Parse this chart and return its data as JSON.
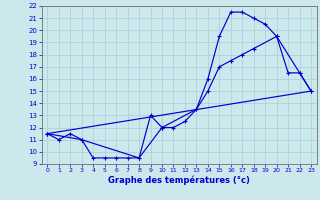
{
  "title": "Graphe des températures (°c)",
  "bg_color": "#cce8ec",
  "line_color": "#0000cc",
  "grid_color": "#aad4d8",
  "xlim": [
    -0.5,
    23.5
  ],
  "ylim": [
    9,
    22
  ],
  "xticks": [
    0,
    1,
    2,
    3,
    4,
    5,
    6,
    7,
    8,
    9,
    10,
    11,
    12,
    13,
    14,
    15,
    16,
    17,
    18,
    19,
    20,
    21,
    22,
    23
  ],
  "yticks": [
    9,
    10,
    11,
    12,
    13,
    14,
    15,
    16,
    17,
    18,
    19,
    20,
    21,
    22
  ],
  "curve_main": {
    "x": [
      0,
      1,
      2,
      3,
      4,
      5,
      6,
      7,
      8,
      9,
      10,
      11,
      12,
      13,
      14,
      15,
      16,
      17,
      18,
      19,
      20,
      21,
      22,
      23
    ],
    "y": [
      11.5,
      11.0,
      11.5,
      11.0,
      9.5,
      9.5,
      9.5,
      9.5,
      9.5,
      13.0,
      12.0,
      12.0,
      12.5,
      13.5,
      16.0,
      19.5,
      21.5,
      21.5,
      21.0,
      20.5,
      19.5,
      16.5,
      16.5,
      15.0
    ]
  },
  "curve_smooth": {
    "x": [
      0,
      3,
      8,
      10,
      13,
      14,
      15,
      16,
      17,
      18,
      20,
      22,
      23
    ],
    "y": [
      11.5,
      11.0,
      9.5,
      12.0,
      13.5,
      15.0,
      17.0,
      17.5,
      18.0,
      18.5,
      19.5,
      16.5,
      15.0
    ]
  },
  "line_regression": {
    "x": [
      0,
      23
    ],
    "y": [
      11.5,
      15.0
    ]
  }
}
